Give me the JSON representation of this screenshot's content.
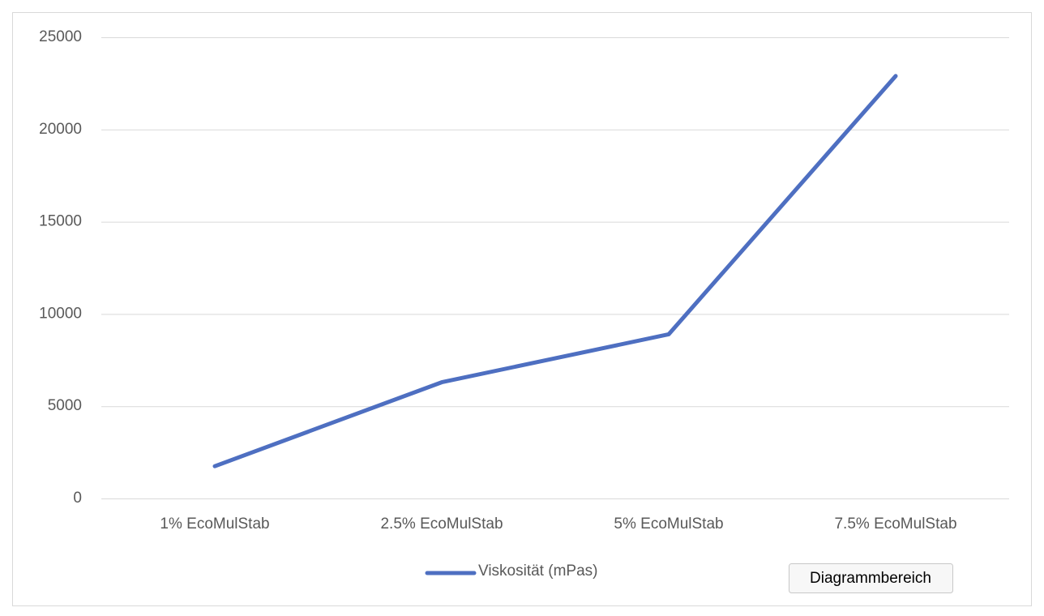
{
  "chart_data": {
    "type": "line",
    "categories": [
      "1% EcoMulStab",
      "2.5% EcoMulStab",
      "5% EcoMulStab",
      "7.5% EcoMulStab"
    ],
    "series": [
      {
        "name": "Viskosität (mPas)",
        "color": "#4e6fc1",
        "values": [
          1750,
          6300,
          8900,
          22900
        ]
      }
    ],
    "ylim": [
      0,
      25000
    ],
    "yticks": [
      0,
      5000,
      10000,
      15000,
      20000,
      25000
    ],
    "grid": true,
    "legend": "bottom",
    "tooltip": "Diagrammbereich"
  }
}
